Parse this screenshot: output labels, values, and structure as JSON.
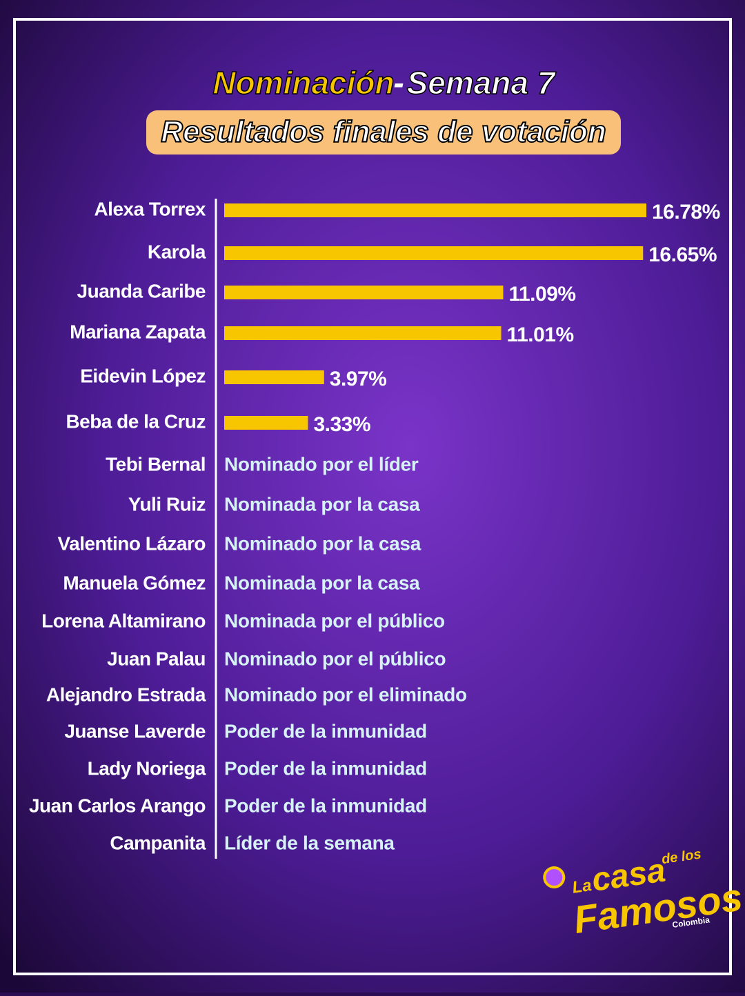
{
  "chart_data": {
    "type": "bar",
    "orientation": "horizontal",
    "title": {
      "highlight": "Nominación",
      "separator": "-",
      "rest": "Semana 7"
    },
    "subtitle": "Resultados finales de votación",
    "categories": [
      "Alexa Torrex",
      "Karola",
      "Juanda Caribe",
      "Mariana Zapata",
      "Eidevin López",
      "Beba de la Cruz"
    ],
    "values": [
      16.78,
      16.65,
      11.09,
      11.01,
      3.97,
      3.33
    ],
    "value_labels": [
      "16.78%",
      "16.65%",
      "11.09%",
      "11.01%",
      "3.97%",
      "3.33%"
    ],
    "color": "#f7c600"
  },
  "other_nominees": [
    {
      "name": "Tebi Bernal",
      "status": "Nominado por el líder"
    },
    {
      "name": "Yuli Ruiz",
      "status": "Nominada por la casa"
    },
    {
      "name": "Valentino Lázaro",
      "status": "Nominado por la casa"
    },
    {
      "name": "Manuela Gómez",
      "status": "Nominada por la casa"
    },
    {
      "name": "Lorena Altamirano",
      "status": "Nominada por el público"
    },
    {
      "name": "Juan Palau",
      "status": "Nominado por el público"
    },
    {
      "name": "Alejandro Estrada",
      "status": "Nominado por el eliminado"
    },
    {
      "name": "Juanse Laverde",
      "status": "Poder de la inmunidad"
    },
    {
      "name": "Lady Noriega",
      "status": "Poder de la inmunidad"
    },
    {
      "name": "Juan Carlos Arango",
      "status": "Poder de la inmunidad"
    },
    {
      "name": "Campanita",
      "status": "Líder de la semana"
    }
  ],
  "logo": {
    "line1": "La",
    "line2": "casa",
    "line3": "de los",
    "line4": "Famosos",
    "line5": "Colombia"
  }
}
